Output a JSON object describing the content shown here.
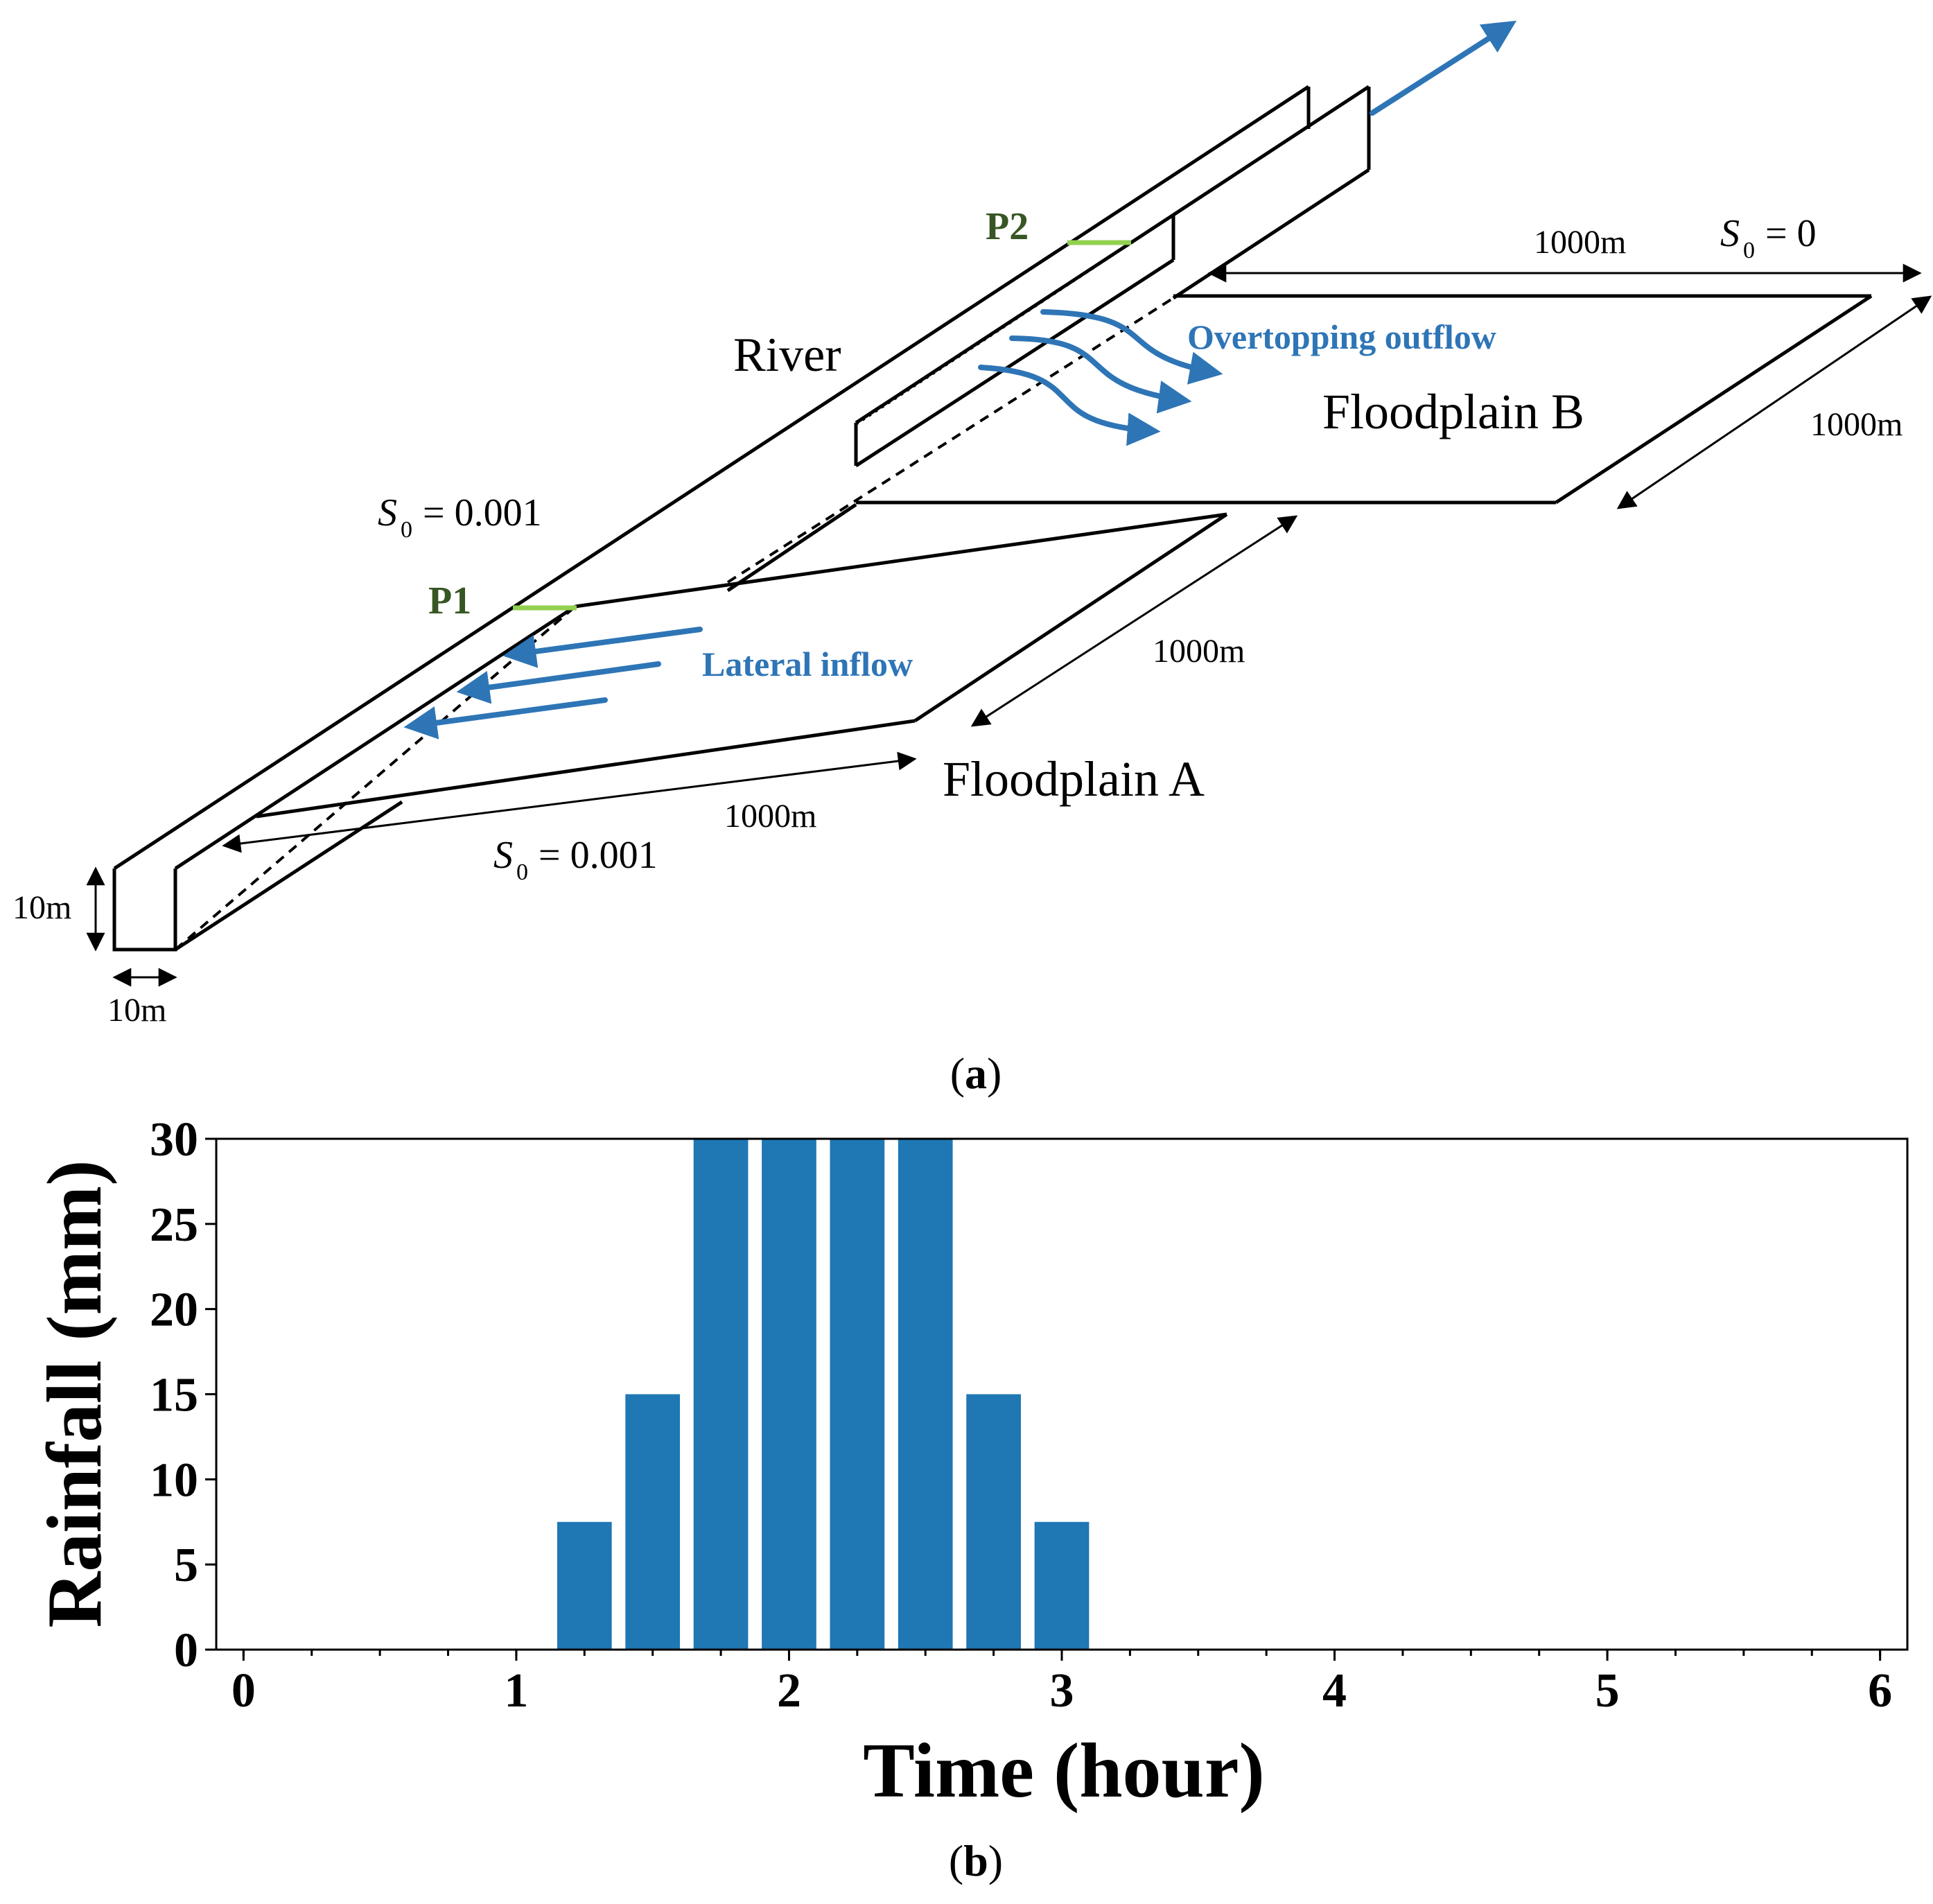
{
  "diagram": {
    "labels": {
      "river": "River",
      "floodplain_a": "Floodplain A",
      "floodplain_b": "Floodplain B",
      "p1": "P1",
      "p2": "P2",
      "lateral_inflow": "Lateral inflow",
      "overtopping_outflow": "Overtopping outflow",
      "slope_river": "= 0.001",
      "slope_a": "= 0.001",
      "slope_b": "= 0",
      "slope_symbol": "S",
      "slope_subscript": "0",
      "dim_b_top": "1000m",
      "dim_b_right": "1000m",
      "dim_a_right": "1000m",
      "dim_a_bottom": "1000m",
      "dim_height": "10m",
      "dim_width": "10m"
    },
    "caption_a": "(a)",
    "caption_b": "(b)",
    "colors": {
      "arrow_blue": "#2e75b6",
      "label_blue": "#2e75b6",
      "point_label": "#375623",
      "point_marker": "#92d050",
      "outline": "#000000"
    }
  },
  "chart_data": {
    "type": "bar",
    "x": [
      1.25,
      1.5,
      1.75,
      2.0,
      2.25,
      2.5,
      2.75,
      3.0
    ],
    "values": [
      7.5,
      15,
      30,
      30,
      30,
      30,
      15,
      7.5
    ],
    "bar_width": 0.2,
    "xlabel": "Time (hour)",
    "ylabel": "Rainfall (mm)",
    "xlim": [
      -0.1,
      6.1
    ],
    "ylim": [
      0,
      30
    ],
    "xticks": [
      0,
      1,
      2,
      3,
      4,
      5,
      6
    ],
    "xtick_labels": [
      "0",
      "1",
      "2",
      "3",
      "4",
      "5",
      "6"
    ],
    "yticks": [
      0,
      5,
      10,
      15,
      20,
      25,
      30
    ],
    "ytick_labels": [
      "0",
      "5",
      "10",
      "15",
      "20",
      "25",
      "30"
    ],
    "x_minor_step": 0.25,
    "bar_color": "#1f77b4",
    "grid": false,
    "legend": "none"
  }
}
